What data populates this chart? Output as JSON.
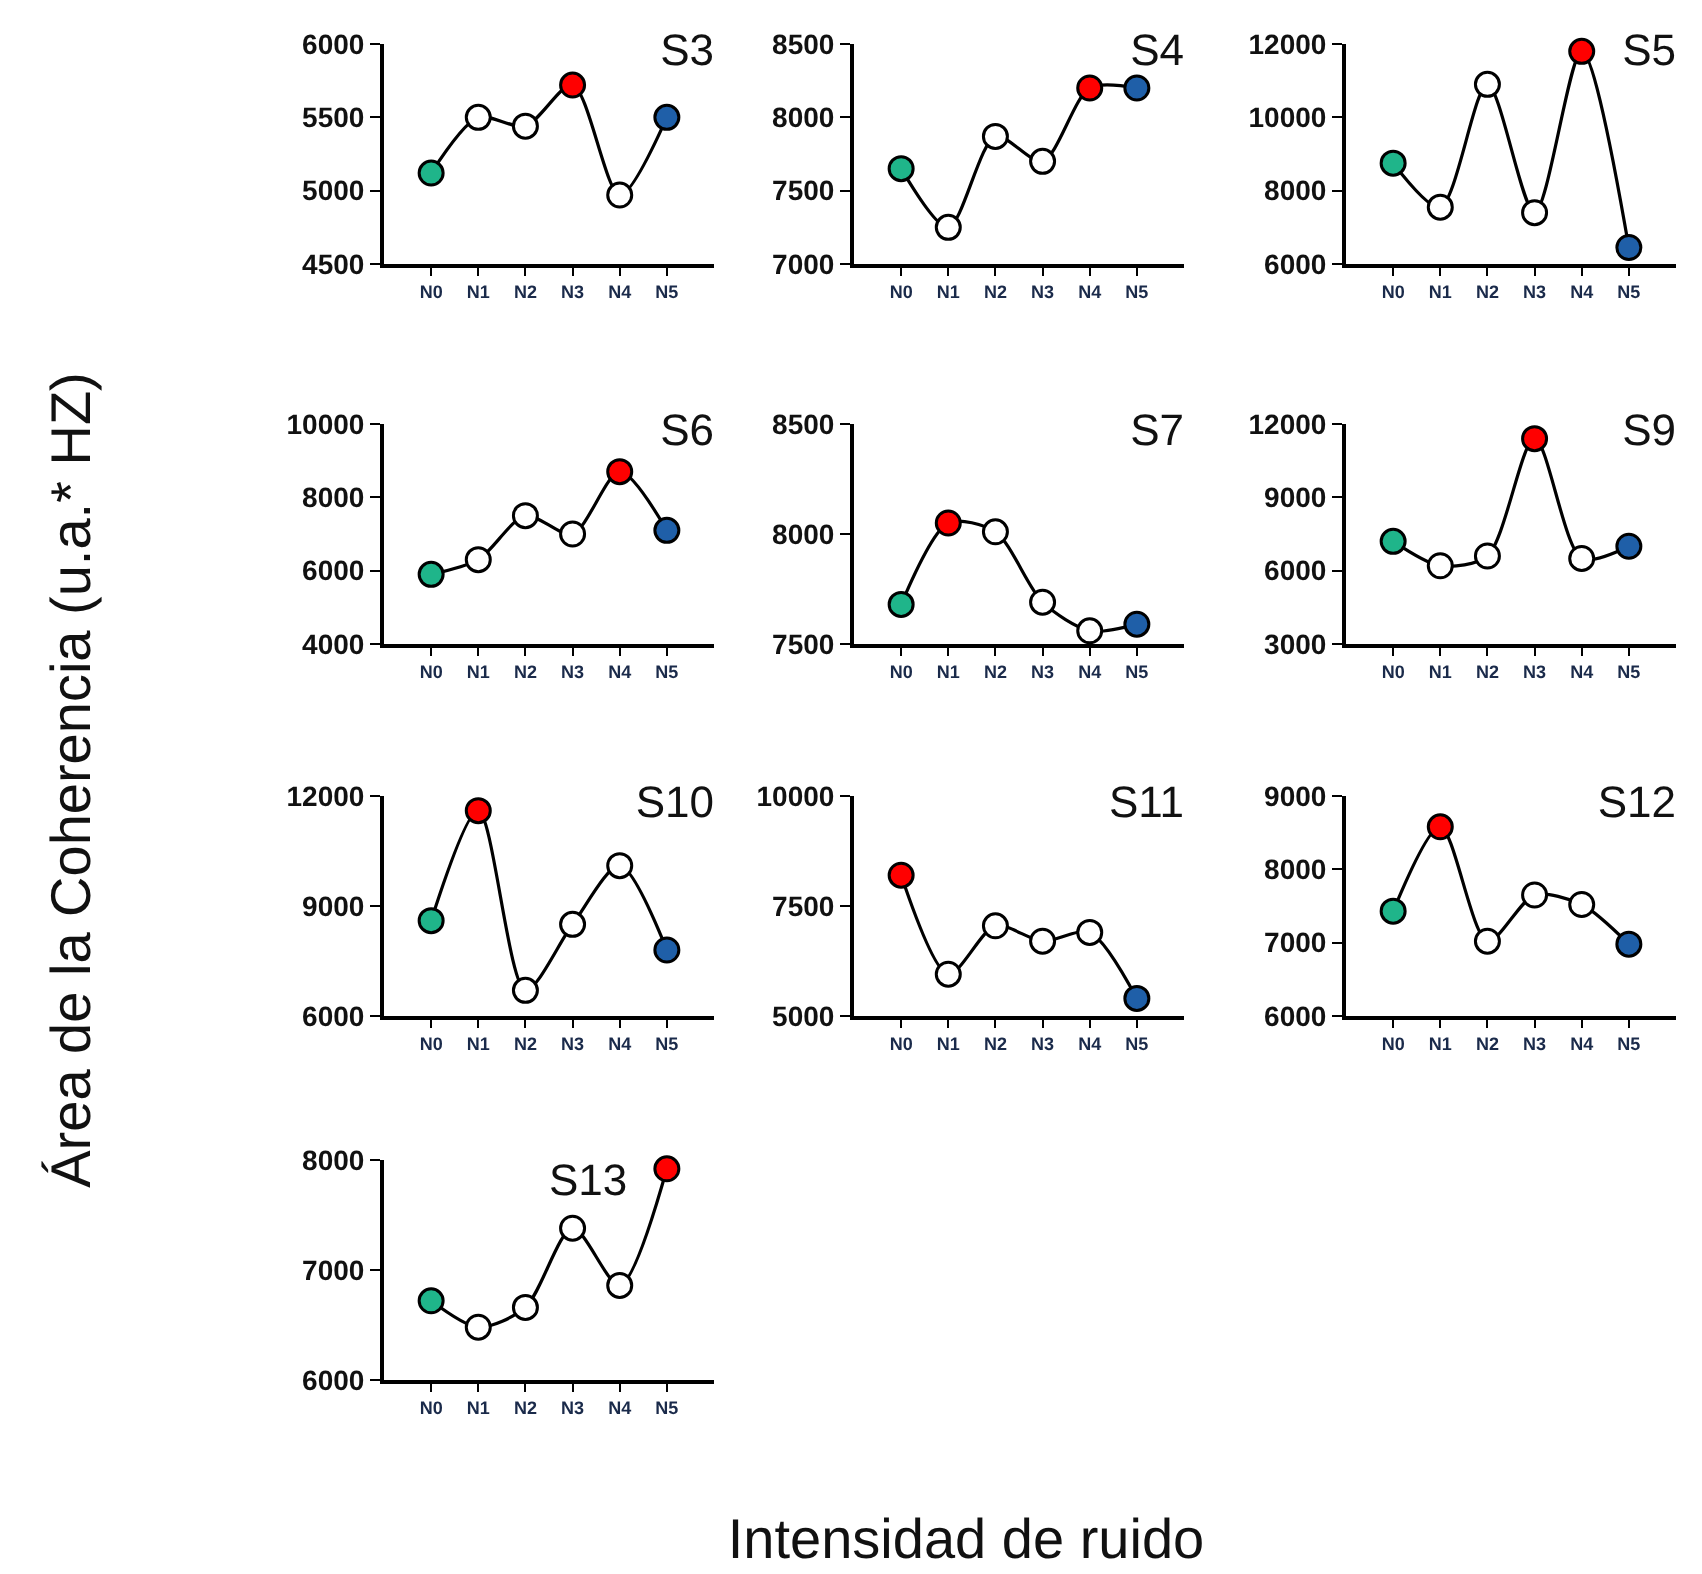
{
  "chart_data": [
    {
      "type": "line",
      "title": "S3",
      "ylabel": "Área de la Coherencia (u.a.* HZ)",
      "categories": [
        "N0",
        "N1",
        "N2",
        "N3",
        "N4",
        "N5"
      ],
      "values": [
        5120,
        5500,
        5440,
        5720,
        4970,
        5500
      ],
      "colors": [
        "#1fb58a",
        "#ffffff",
        "#ffffff",
        "#ff0000",
        "#ffffff",
        "#1f5fa8"
      ],
      "ylim": [
        4500,
        6000
      ],
      "yticks": [
        4500,
        5000,
        5500,
        6000
      ],
      "marker": "circle",
      "grid": false,
      "legend": false
    },
    {
      "type": "line",
      "title": "S4",
      "categories": [
        "N0",
        "N1",
        "N2",
        "N3",
        "N4",
        "N5"
      ],
      "values": [
        7650,
        7250,
        7870,
        7700,
        8200,
        8200
      ],
      "colors": [
        "#1fb58a",
        "#ffffff",
        "#ffffff",
        "#ffffff",
        "#ff0000",
        "#1f5fa8"
      ],
      "ylim": [
        7000,
        8500
      ],
      "yticks": [
        7000,
        7500,
        8000,
        8500
      ],
      "marker": "circle",
      "grid": false,
      "legend": false
    },
    {
      "type": "line",
      "title": "S5",
      "categories": [
        "N0",
        "N1",
        "N2",
        "N3",
        "N4",
        "N5"
      ],
      "values": [
        8750,
        7550,
        10900,
        7400,
        11800,
        6450
      ],
      "colors": [
        "#1fb58a",
        "#ffffff",
        "#ffffff",
        "#ffffff",
        "#ff0000",
        "#1f5fa8"
      ],
      "ylim": [
        6000,
        12000
      ],
      "yticks": [
        6000,
        8000,
        10000,
        12000
      ],
      "marker": "circle",
      "grid": false,
      "legend": false
    },
    {
      "type": "line",
      "title": "S6",
      "categories": [
        "N0",
        "N1",
        "N2",
        "N3",
        "N4",
        "N5"
      ],
      "values": [
        5900,
        6300,
        7500,
        7000,
        8700,
        7100
      ],
      "colors": [
        "#1fb58a",
        "#ffffff",
        "#ffffff",
        "#ffffff",
        "#ff0000",
        "#1f5fa8"
      ],
      "ylim": [
        4000,
        10000
      ],
      "yticks": [
        4000,
        6000,
        8000,
        10000
      ],
      "marker": "circle",
      "grid": false,
      "legend": false
    },
    {
      "type": "line",
      "title": "S7",
      "categories": [
        "N0",
        "N1",
        "N2",
        "N3",
        "N4",
        "N5"
      ],
      "values": [
        7680,
        8050,
        8010,
        7690,
        7560,
        7590
      ],
      "colors": [
        "#1fb58a",
        "#ff0000",
        "#ffffff",
        "#ffffff",
        "#ffffff",
        "#1f5fa8"
      ],
      "ylim": [
        7500,
        8500
      ],
      "yticks": [
        7500,
        8000,
        8500
      ],
      "marker": "circle",
      "grid": false,
      "legend": false
    },
    {
      "type": "line",
      "title": "S9",
      "categories": [
        "N0",
        "N1",
        "N2",
        "N3",
        "N4",
        "N5"
      ],
      "values": [
        7200,
        6200,
        6600,
        11400,
        6500,
        7000
      ],
      "colors": [
        "#1fb58a",
        "#ffffff",
        "#ffffff",
        "#ff0000",
        "#ffffff",
        "#1f5fa8"
      ],
      "ylim": [
        3000,
        12000
      ],
      "yticks": [
        3000,
        6000,
        9000,
        12000
      ],
      "marker": "circle",
      "grid": false,
      "legend": false
    },
    {
      "type": "line",
      "title": "S10",
      "categories": [
        "N0",
        "N1",
        "N2",
        "N3",
        "N4",
        "N5"
      ],
      "values": [
        8600,
        11600,
        6700,
        8500,
        10100,
        7800
      ],
      "colors": [
        "#1fb58a",
        "#ff0000",
        "#ffffff",
        "#ffffff",
        "#ffffff",
        "#1f5fa8"
      ],
      "ylim": [
        6000,
        12000
      ],
      "yticks": [
        6000,
        9000,
        12000
      ],
      "marker": "circle",
      "grid": false,
      "legend": false
    },
    {
      "type": "line",
      "title": "S11",
      "categories": [
        "N0",
        "N1",
        "N2",
        "N3",
        "N4",
        "N5"
      ],
      "values": [
        8200,
        5950,
        7050,
        6700,
        6900,
        5400
      ],
      "colors": [
        "#ff0000",
        "#ffffff",
        "#ffffff",
        "#ffffff",
        "#ffffff",
        "#1f5fa8"
      ],
      "ylim": [
        5000,
        10000
      ],
      "yticks": [
        5000,
        7500,
        10000
      ],
      "marker": "circle",
      "grid": false,
      "legend": false
    },
    {
      "type": "line",
      "title": "S12",
      "categories": [
        "N0",
        "N1",
        "N2",
        "N3",
        "N4",
        "N5"
      ],
      "values": [
        7430,
        8580,
        7020,
        7650,
        7520,
        6980
      ],
      "colors": [
        "#1fb58a",
        "#ff0000",
        "#ffffff",
        "#ffffff",
        "#ffffff",
        "#1f5fa8"
      ],
      "ylim": [
        6000,
        9000
      ],
      "yticks": [
        6000,
        7000,
        8000,
        9000
      ],
      "marker": "circle",
      "grid": false,
      "legend": false
    },
    {
      "type": "line",
      "title": "S13",
      "xlabel": "Intensidad de ruido",
      "categories": [
        "N0",
        "N1",
        "N2",
        "N3",
        "N4",
        "N5"
      ],
      "values": [
        6720,
        6480,
        6660,
        7380,
        6860,
        7920
      ],
      "colors": [
        "#1fb58a",
        "#ffffff",
        "#ffffff",
        "#ffffff",
        "#ffffff",
        "#ff0000"
      ],
      "ylim": [
        6000,
        8000
      ],
      "yticks": [
        6000,
        7000,
        8000
      ],
      "marker": "circle",
      "grid": false,
      "legend": false
    }
  ]
}
